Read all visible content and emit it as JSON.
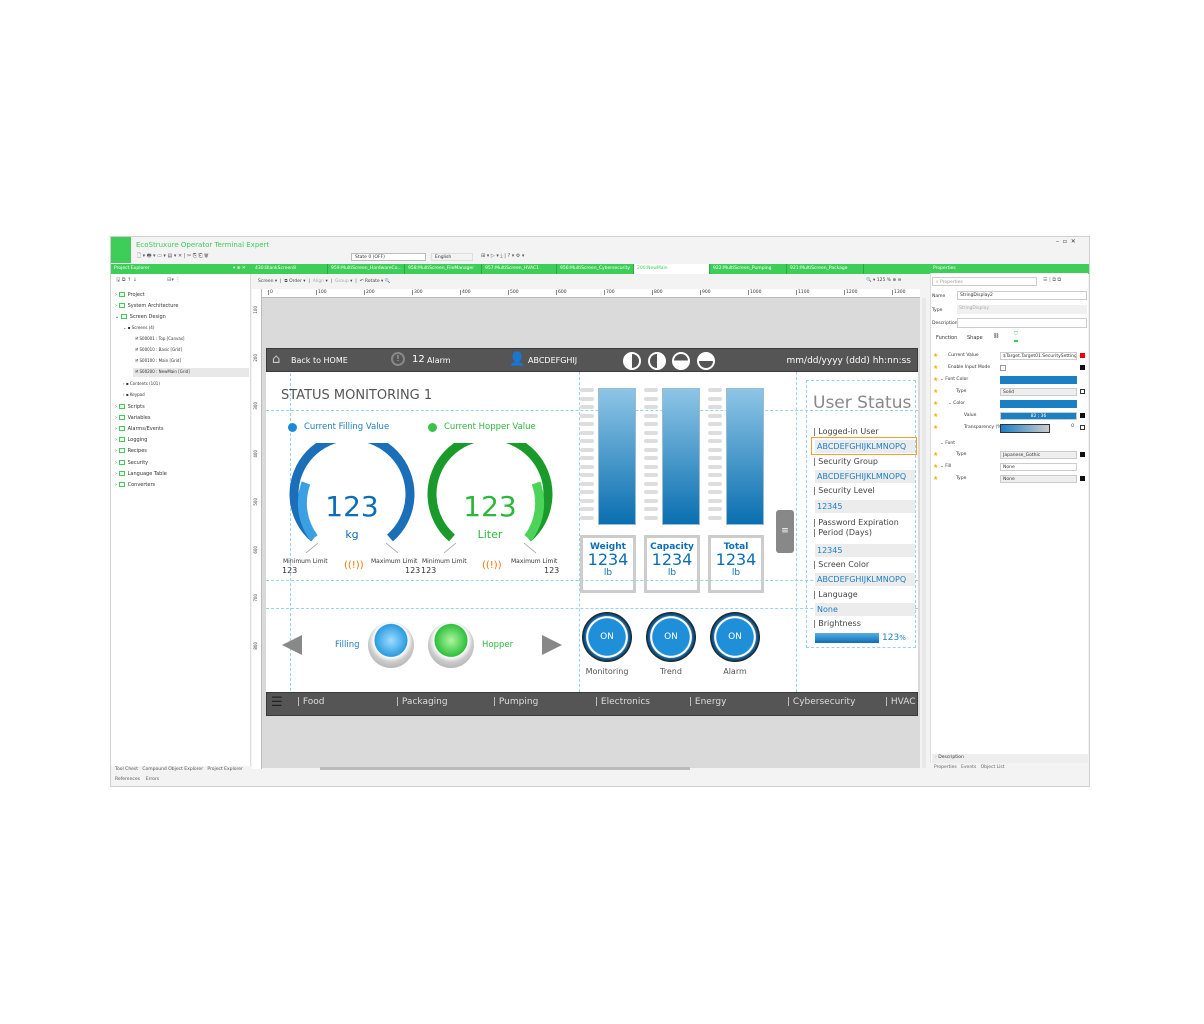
{
  "app": {
    "title": "EcoStruxure Operator Terminal Expert",
    "state_select": "State 0 (OFF)",
    "language_select": "English"
  },
  "colors": {
    "accent": "#3dcd58",
    "hmi_blue": "#0b6fb8",
    "hmi_green": "#2db83d",
    "hmi_dark": "#555555",
    "alarm_orange": "#f07800"
  },
  "left_panel": {
    "title": "Project Explorer",
    "tree": [
      {
        "label": "Project"
      },
      {
        "label": "System Architecture"
      },
      {
        "label": "Screen Design"
      },
      {
        "label": "Screens (4)"
      },
      {
        "label": "S00001 : Top [Canvas]"
      },
      {
        "label": "S00010 : Basic [Grid]"
      },
      {
        "label": "S00100 : Main [Grid]"
      },
      {
        "label": "S00200 : NewMain [Grid]"
      },
      {
        "label": "Contents (101)"
      },
      {
        "label": "Keypad"
      },
      {
        "label": "Scripts"
      },
      {
        "label": "Variables"
      },
      {
        "label": "Alarms/Events"
      },
      {
        "label": "Logging"
      },
      {
        "label": "Recipes"
      },
      {
        "label": "Security"
      },
      {
        "label": "Language Table"
      },
      {
        "label": "Converters"
      }
    ],
    "bottom_tabs": [
      "Tool Chest",
      "Compound Object Explorer",
      "Project Explorer"
    ],
    "bottom_tabs2": [
      "References",
      "Errors"
    ]
  },
  "doc_tabs": [
    "430:BlankScreen8",
    "959:MultiScreen_HardwareCo...",
    "958:MultiScreen_FileManager",
    "957:MultiScreen_HVAC1",
    "956:MultiScreen_Cybersecurity",
    "200:NewMain",
    "922:MultiScreen_Pumping",
    "921:MultiScreen_Package"
  ],
  "editor_toolbar": {
    "screen": "Screen",
    "order": "Order",
    "align": "Align",
    "group": "Group",
    "rotate": "Rotate",
    "zoom": "125",
    "zoom_unit": "%"
  },
  "ruler": {
    "h": [
      "0",
      "100",
      "200",
      "300",
      "400",
      "500",
      "600",
      "700",
      "800",
      "900",
      "1000",
      "1100",
      "1200",
      "1300"
    ],
    "v": [
      "100",
      "200",
      "300",
      "400",
      "500",
      "600",
      "700",
      "800"
    ]
  },
  "hmi": {
    "top_bar": {
      "home": "Back to HOME",
      "alarm_count": "12",
      "alarm": "Alarm",
      "user": "ABCDEFGHIJ",
      "datetime": "mm/dd/yyyy (ddd) hh:nn:ss"
    },
    "title": "STATUS MONITORING 1",
    "legend": {
      "filling": "Current Filling Value",
      "hopper": "Current Hopper Value"
    },
    "gauges": [
      {
        "value": "123",
        "unit": "kg",
        "min_label": "Minimum Limit",
        "min": "123",
        "max_label": "Maximum Limit",
        "max": "123"
      },
      {
        "value": "123",
        "unit": "Liter",
        "min_label": "Minimum Limit",
        "min": "123",
        "max_label": "Maximum Limit",
        "max": "123"
      }
    ],
    "boxes": [
      {
        "label": "Weight",
        "value": "1234",
        "unit": "lb"
      },
      {
        "label": "Capacity",
        "value": "1234",
        "unit": "lb"
      },
      {
        "label": "Total",
        "value": "1234",
        "unit": "lb"
      }
    ],
    "buttons": [
      {
        "text": "ON",
        "label": "Monitoring"
      },
      {
        "text": "ON",
        "label": "Trend"
      },
      {
        "text": "ON",
        "label": "Alarm"
      }
    ],
    "nav": {
      "filling": "Filling",
      "hopper": "Hopper"
    },
    "user_status": {
      "title": "User Status",
      "items": [
        {
          "label": "Logged-in User",
          "value": "ABCDEFGHIJKLMNOPQ"
        },
        {
          "label": "Security Group",
          "value": "ABCDEFGHIJKLMNOPQ"
        },
        {
          "label": "Security Level",
          "value": "12345"
        },
        {
          "label": "Password Expiration",
          "label2": "Period (Days)",
          "value": "12345"
        },
        {
          "label": "Screen Color",
          "value": "ABCDEFGHIJKLMNOPQ"
        },
        {
          "label": "Language",
          "value": "None"
        },
        {
          "label": "Brightness",
          "value": "123",
          "unit": "%",
          "level_percent": 100
        }
      ]
    },
    "bottom_nav": [
      "Food",
      "Packaging",
      "Pumping",
      "Electronics",
      "Energy",
      "Cybersecurity",
      "HVAC"
    ]
  },
  "properties": {
    "title": "Properties",
    "search_placeholder": "Properties",
    "name_label": "Name",
    "name": "StringDisplay2",
    "type_label": "Type",
    "type": "StringDisplay",
    "description_label": "Description",
    "tabs": [
      "Function",
      "Shape"
    ],
    "rows": {
      "current_value": "Current Value",
      "current_value_val": "$Target.Target01.SecuritySettings.Cur",
      "enable_input": "Enable Input Mode",
      "font_color": "Font Color",
      "type": "Type",
      "type_val": "Solid",
      "color": "Color",
      "value": "Value",
      "value_val": "82 ; 36",
      "transparency": "Transparency (%)",
      "transparency_val": "0",
      "font": "Font",
      "font_type_val": "Japanese_Gothic",
      "fill": "Fill",
      "fill_val": "None",
      "fill_type_val": "None"
    },
    "description_section": "Description",
    "bottom_tabs": [
      "Properties",
      "Events",
      "Object List"
    ]
  }
}
